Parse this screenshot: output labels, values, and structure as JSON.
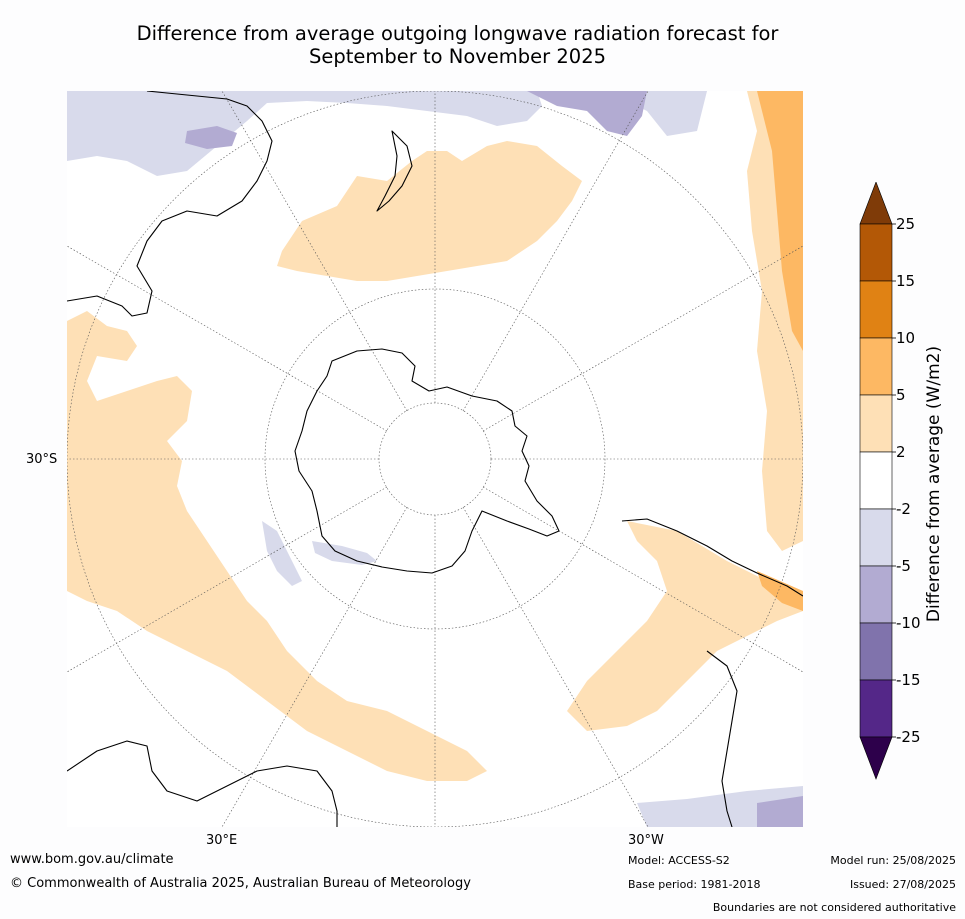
{
  "title_line1": "Difference from average outgoing longwave radiation forecast for",
  "title_line2": "September to November 2025",
  "map": {
    "lat_label": "30°S",
    "lon_label_left": "30°E",
    "lon_label_right": "30°W"
  },
  "colorbar": {
    "title": "Difference from average (W/m2)",
    "ticks": [
      "25",
      "15",
      "10",
      "5",
      "2",
      "-2",
      "-5",
      "-10",
      "-15",
      "-25"
    ],
    "colors": {
      "above_max": "#7f3b08",
      "b15_25": "#b35806",
      "b10_15": "#e08214",
      "b5_10": "#fdb863",
      "b2_5": "#fee0b6",
      "neutral": "#ffffff",
      "bm5_m2": "#d8daeb",
      "bm10_m5": "#b2abd2",
      "bm15_m10": "#8073ac",
      "bm25_m15": "#542788",
      "below_min": "#2d004b"
    }
  },
  "footer": {
    "website": "www.bom.gov.au/climate",
    "copyright": "© Commonwealth of Australia 2025, Australian Bureau of Meteorology",
    "model": "Model: ACCESS-S2",
    "base_period": "Base period: 1981-2018",
    "model_run": "Model run: 25/08/2025",
    "issued": "Issued: 27/08/2025",
    "disclaimer": "Boundaries are not considered authoritative"
  }
}
